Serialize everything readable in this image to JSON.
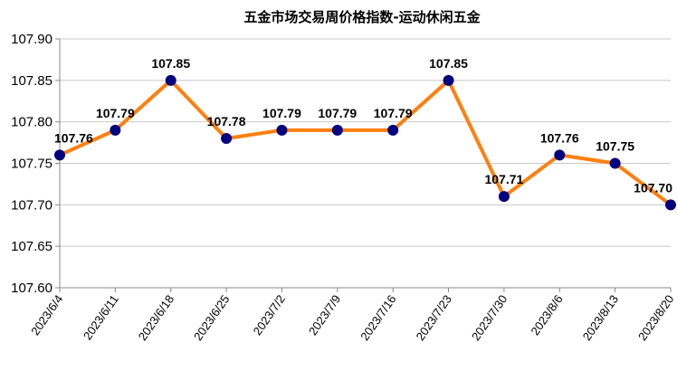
{
  "chart_data": {
    "type": "line",
    "title": "五金市场交易周价格指数-运动休闲五金",
    "xlabel": "",
    "ylabel": "",
    "x": [
      "2023/6/4",
      "2023/6/11",
      "2023/6/18",
      "2023/6/25",
      "2023/7/2",
      "2023/7/9",
      "2023/7/16",
      "2023/7/23",
      "2023/7/30",
      "2023/8/6",
      "2023/8/13",
      "2023/8/20"
    ],
    "values": [
      107.76,
      107.79,
      107.85,
      107.78,
      107.79,
      107.79,
      107.79,
      107.85,
      107.71,
      107.76,
      107.75,
      107.7
    ],
    "data_labels": [
      "107.76",
      "107.79",
      "107.85",
      "107.78",
      "107.79",
      "107.79",
      "107.79",
      "107.85",
      "107.71",
      "107.76",
      "107.75",
      "107.70"
    ],
    "ylim": [
      107.6,
      107.9
    ],
    "yticks": [
      "107.60",
      "107.65",
      "107.70",
      "107.75",
      "107.80",
      "107.85",
      "107.90"
    ],
    "grid": "horizontal",
    "legend": "none",
    "line_color": "#ff7f0e",
    "marker_color": "#000080"
  }
}
